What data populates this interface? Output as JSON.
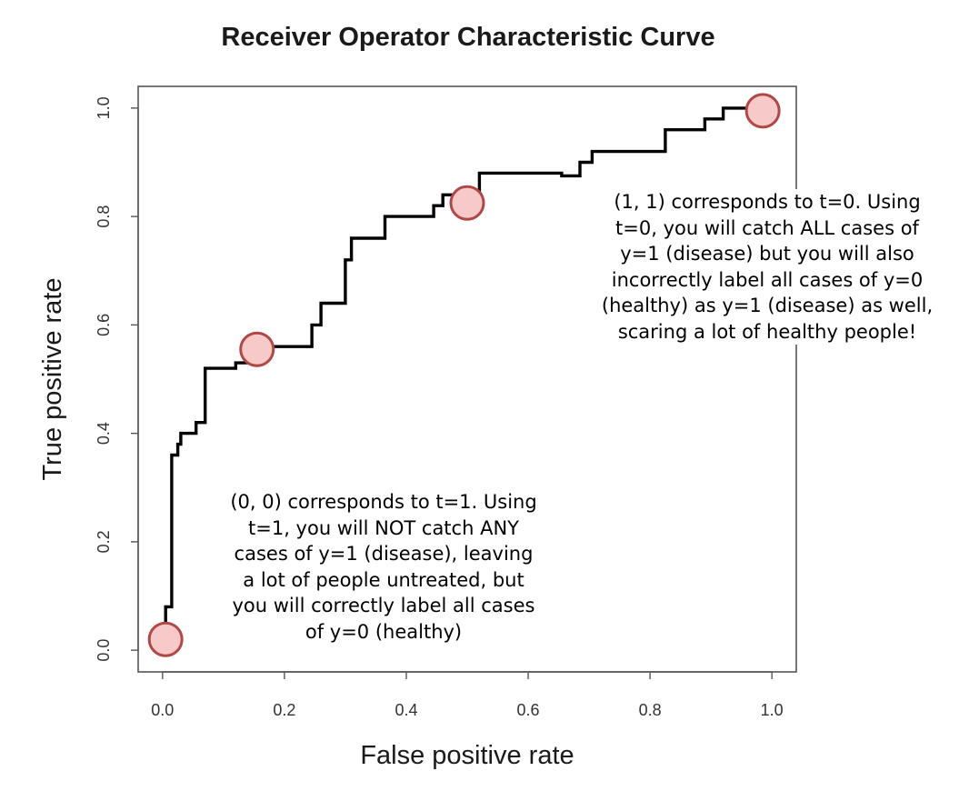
{
  "chart_data": {
    "type": "line",
    "title": "Receiver Operator Characteristic Curve",
    "xlabel": "False positive rate",
    "ylabel": "True positive rate",
    "xlim": [
      -0.04,
      1.04
    ],
    "ylim": [
      -0.04,
      1.04
    ],
    "x_ticks": [
      "0.0",
      "0.2",
      "0.4",
      "0.6",
      "0.8",
      "1.0"
    ],
    "y_ticks": [
      "0.0",
      "0.2",
      "0.4",
      "0.6",
      "0.8",
      "1.0"
    ],
    "grid": false,
    "series": [
      {
        "x": [
          0.0,
          0.0,
          0.005,
          0.005,
          0.015,
          0.015,
          0.015,
          0.025,
          0.025,
          0.03,
          0.03,
          0.055,
          0.055,
          0.07,
          0.07,
          0.12,
          0.12,
          0.15,
          0.15,
          0.18,
          0.18,
          0.245,
          0.245,
          0.26,
          0.26,
          0.3,
          0.3,
          0.31,
          0.31,
          0.335,
          0.335,
          0.365,
          0.365,
          0.445,
          0.445,
          0.46,
          0.46,
          0.48,
          0.48,
          0.505,
          0.505,
          0.52,
          0.52,
          0.555,
          0.555,
          0.655,
          0.655,
          0.685,
          0.685,
          0.705,
          0.705,
          0.825,
          0.825,
          0.89,
          0.89,
          0.92,
          0.92,
          1.0
        ],
        "y": [
          0.0,
          0.04,
          0.04,
          0.08,
          0.08,
          0.2,
          0.36,
          0.36,
          0.38,
          0.38,
          0.4,
          0.4,
          0.42,
          0.42,
          0.52,
          0.52,
          0.53,
          0.53,
          0.55,
          0.55,
          0.56,
          0.56,
          0.6,
          0.6,
          0.64,
          0.64,
          0.72,
          0.72,
          0.76,
          0.76,
          0.76,
          0.76,
          0.8,
          0.8,
          0.82,
          0.82,
          0.84,
          0.84,
          0.82,
          0.82,
          0.84,
          0.84,
          0.88,
          0.88,
          0.88,
          0.88,
          0.875,
          0.875,
          0.9,
          0.9,
          0.92,
          0.92,
          0.96,
          0.96,
          0.98,
          0.98,
          1.0,
          1.0
        ]
      }
    ],
    "highlighted_points": [
      {
        "x": 0.005,
        "y": 0.02
      },
      {
        "x": 0.155,
        "y": 0.555
      },
      {
        "x": 0.5,
        "y": 0.825
      },
      {
        "x": 0.985,
        "y": 0.995
      }
    ],
    "marker_fill": "#f7c9c9",
    "marker_stroke": "#b04848",
    "line_color": "#000000",
    "annotations": [
      {
        "id": "low",
        "lines": [
          "(0, 0) corresponds to t=1. Using",
          "t=1, you will NOT catch ANY",
          "cases of y=1 (disease), leaving",
          "a lot of people untreated, but",
          "you will correctly label all cases",
          "of y=0 (healthy)"
        ]
      },
      {
        "id": "high",
        "lines": [
          "(1, 1) corresponds to t=0. Using",
          "t=0, you will catch ALL cases of",
          "y=1 (disease) but you will also",
          "incorrectly label all cases of y=0",
          "(healthy) as y=1 (disease) as well,",
          "scaring a lot of healthy people!"
        ]
      }
    ]
  }
}
